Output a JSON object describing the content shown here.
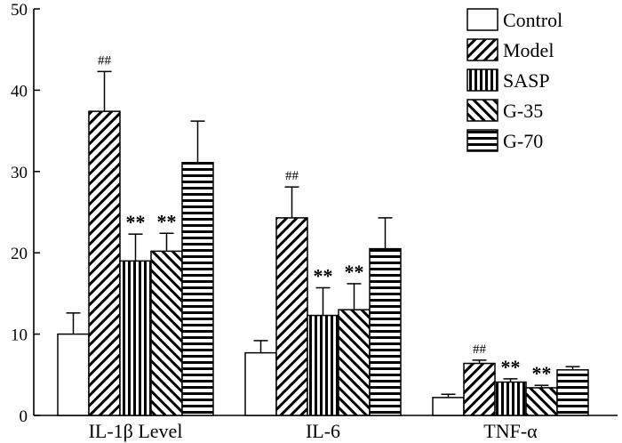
{
  "chart_data": {
    "type": "bar",
    "title": "",
    "xlabel": "",
    "ylabel": "",
    "ylim": [
      0,
      50
    ],
    "yticks": [
      0,
      10,
      20,
      30,
      40,
      50
    ],
    "categories": [
      "IL-1β Level",
      "IL-6",
      "TNF-α"
    ],
    "series": [
      {
        "name": "Control",
        "pattern": "none",
        "values": [
          10.0,
          7.7,
          2.2
        ],
        "errors": [
          2.6,
          1.5,
          0.4
        ]
      },
      {
        "name": "Model",
        "pattern": "diagonal",
        "values": [
          37.4,
          24.3,
          6.4
        ],
        "errors": [
          4.9,
          3.8,
          0.4
        ]
      },
      {
        "name": "SASP",
        "pattern": "vertical",
        "values": [
          19.0,
          12.3,
          4.1
        ],
        "errors": [
          3.3,
          3.4,
          0.4
        ]
      },
      {
        "name": "G-35",
        "pattern": "antidiagonal",
        "values": [
          20.2,
          13.0,
          3.4
        ],
        "errors": [
          2.2,
          3.2,
          0.3
        ]
      },
      {
        "name": "G-70",
        "pattern": "horizontal",
        "values": [
          31.1,
          20.5,
          5.6
        ],
        "errors": [
          5.1,
          3.8,
          0.4
        ]
      }
    ],
    "annotations": [
      {
        "category": 0,
        "series": 1,
        "text": "##"
      },
      {
        "category": 0,
        "series": 2,
        "text": "**"
      },
      {
        "category": 0,
        "series": 3,
        "text": "**"
      },
      {
        "category": 1,
        "series": 1,
        "text": "##"
      },
      {
        "category": 1,
        "series": 2,
        "text": "**"
      },
      {
        "category": 1,
        "series": 3,
        "text": "**"
      },
      {
        "category": 2,
        "series": 1,
        "text": "##"
      },
      {
        "category": 2,
        "series": 2,
        "text": "**"
      },
      {
        "category": 2,
        "series": 3,
        "text": "**"
      }
    ],
    "legend_position": "top-right",
    "grid": false
  }
}
